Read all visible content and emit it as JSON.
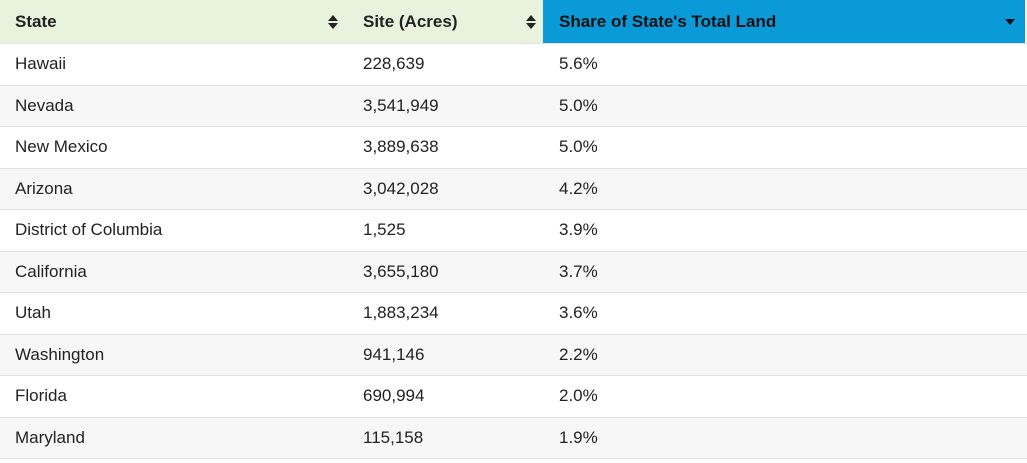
{
  "table": {
    "headers": [
      {
        "label": "State",
        "sort": "both"
      },
      {
        "label": "Site (Acres)",
        "sort": "both"
      },
      {
        "label": "Share of State's Total Land",
        "sort": "descending"
      }
    ],
    "rows": [
      {
        "state": "Hawaii",
        "site_acres": "228,639",
        "share": "5.6%"
      },
      {
        "state": "Nevada",
        "site_acres": "3,541,949",
        "share": "5.0%"
      },
      {
        "state": "New Mexico",
        "site_acres": "3,889,638",
        "share": "5.0%"
      },
      {
        "state": "Arizona",
        "site_acres": "3,042,028",
        "share": "4.2%"
      },
      {
        "state": "District of Columbia",
        "site_acres": "1,525",
        "share": "3.9%"
      },
      {
        "state": "California",
        "site_acres": "3,655,180",
        "share": "3.7%"
      },
      {
        "state": "Utah",
        "site_acres": "1,883,234",
        "share": "3.6%"
      },
      {
        "state": "Washington",
        "site_acres": "941,146",
        "share": "2.2%"
      },
      {
        "state": "Florida",
        "site_acres": "690,994",
        "share": "2.0%"
      },
      {
        "state": "Maryland",
        "site_acres": "115,158",
        "share": "1.9%"
      }
    ]
  },
  "colors": {
    "header_bg": "#e8f2dc",
    "active_header_bg": "#0a9ad8",
    "row_alt_bg": "#f7f7f7",
    "text": "#222222"
  },
  "icons": {
    "sort_both": "sort-up-down-icon",
    "sort_desc": "sort-descending-icon"
  }
}
